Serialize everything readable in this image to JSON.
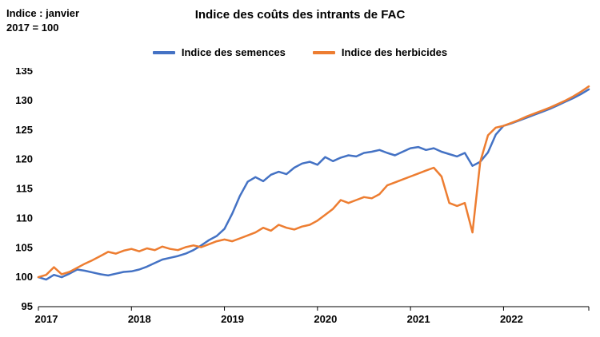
{
  "chart_data": {
    "type": "line",
    "title": "Indice des coûts des intrants de FAC",
    "axis_note": "Indice : janvier 2017 = 100",
    "x_tick_labels": [
      "2017",
      "2018",
      "2019",
      "2020",
      "2021",
      "2022"
    ],
    "y_ticks": [
      95,
      100,
      105,
      110,
      115,
      120,
      125,
      130,
      135
    ],
    "ylim": [
      95,
      135
    ],
    "grid": false,
    "legend_position": "top",
    "points_per_year": 12,
    "series": [
      {
        "name": "Indice des semences",
        "color": "#4472C4",
        "values": [
          100.0,
          99.6,
          100.4,
          100.0,
          100.6,
          101.3,
          101.1,
          100.8,
          100.5,
          100.3,
          100.6,
          100.9,
          101.0,
          101.3,
          101.8,
          102.4,
          103.0,
          103.3,
          103.6,
          104.0,
          104.6,
          105.4,
          106.3,
          107.0,
          108.2,
          110.8,
          113.8,
          116.2,
          117.0,
          116.3,
          117.4,
          117.9,
          117.5,
          118.6,
          119.3,
          119.6,
          119.1,
          120.4,
          119.7,
          120.3,
          120.7,
          120.5,
          121.1,
          121.3,
          121.6,
          121.1,
          120.7,
          121.3,
          121.9,
          122.1,
          121.6,
          121.9,
          121.3,
          120.9,
          120.5,
          121.1,
          118.9,
          119.6,
          121.2,
          124.2,
          125.7,
          126.1,
          126.6,
          127.1,
          127.6,
          128.1,
          128.6,
          129.2,
          129.8,
          130.4,
          131.1,
          131.9
        ]
      },
      {
        "name": "Indice des herbicides",
        "color": "#ED7D31",
        "values": [
          100.0,
          100.4,
          101.7,
          100.5,
          100.9,
          101.6,
          102.3,
          102.9,
          103.6,
          104.3,
          104.0,
          104.5,
          104.8,
          104.4,
          104.9,
          104.6,
          105.2,
          104.8,
          104.6,
          105.1,
          105.4,
          105.1,
          105.6,
          106.1,
          106.4,
          106.1,
          106.6,
          107.1,
          107.6,
          108.4,
          107.9,
          108.9,
          108.4,
          108.1,
          108.6,
          108.9,
          109.6,
          110.6,
          111.6,
          113.1,
          112.6,
          113.1,
          113.6,
          113.4,
          114.1,
          115.6,
          116.1,
          116.6,
          117.1,
          117.6,
          118.1,
          118.6,
          117.1,
          112.6,
          112.1,
          112.6,
          107.6,
          119.6,
          124.1,
          125.4,
          125.7,
          126.2,
          126.7,
          127.3,
          127.8,
          128.3,
          128.8,
          129.4,
          130.0,
          130.7,
          131.5,
          132.4
        ]
      }
    ]
  }
}
